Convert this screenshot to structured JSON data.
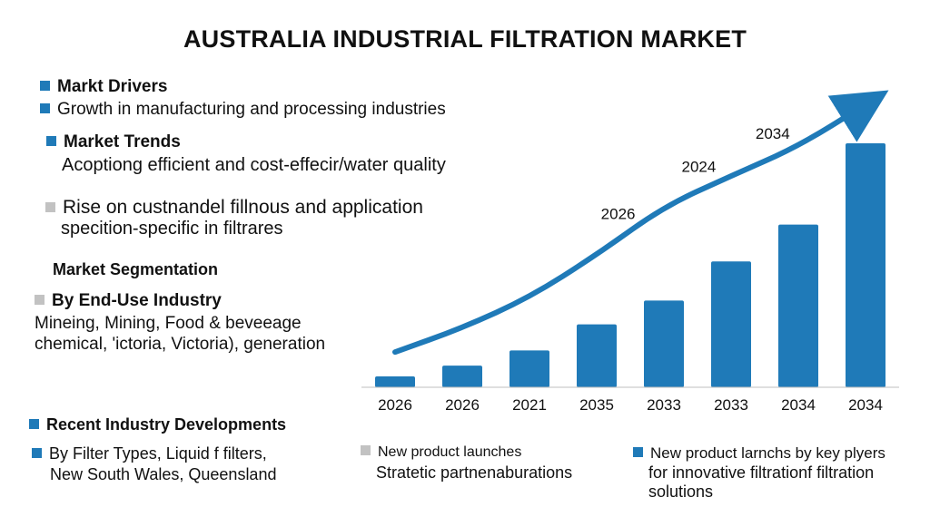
{
  "title": "AUSTRALIA INDUSTRIAL FILTRATION MARKET",
  "colors": {
    "accent": "#1f7ab8",
    "bullet_grey": "#c2c2c2"
  },
  "left": {
    "drivers": {
      "heading": "Markt Drivers",
      "item": "Growth in manufacturing and processing industries"
    },
    "trends": {
      "heading": "Market Trends",
      "item": "Acoptiong efficient and cost-effecir/water quality"
    },
    "rise": {
      "line1": "Rise on custnandel fillnous and application",
      "line2": "specition-specific in filtrares"
    },
    "segmentation": {
      "heading": "Market Segmentation"
    },
    "end_use": {
      "heading": "By End-Use Industry",
      "line1": "Mineing, Mining, Food & beveeage",
      "line2": "chemical, 'ictoria, Victoria),  generation"
    },
    "recent": {
      "heading": "Recent Industry Developments"
    },
    "filter_types": {
      "line1": "By Filter Types, Liquid f filters,",
      "line2": "New South Wales, Queensland"
    }
  },
  "bottom": {
    "col2": {
      "line1": "New product launches",
      "line2": "Stratetic partnenaburations"
    },
    "col3": {
      "line1": "New product larnchs by key plyers",
      "line2": "for innovative filtrationf filtration",
      "line3": "solutions"
    }
  },
  "chart_data": {
    "type": "bar",
    "categories": [
      "2026",
      "2026",
      "2021",
      "2035",
      "2033",
      "2033",
      "2034",
      "2034"
    ],
    "values": [
      1,
      2,
      3.4,
      5.8,
      8,
      11.6,
      15,
      22.5
    ],
    "ylim": [
      0,
      24
    ],
    "grid": false,
    "bar_color": "#1f7ab8",
    "trend_line": {
      "values": [
        3.8,
        6.4,
        9.7,
        14.3,
        19.5,
        22.8,
        26,
        30.5
      ],
      "labels": [
        {
          "text": "2026",
          "at_index": 3.4
        },
        {
          "text": "2024",
          "at_index": 4.6
        },
        {
          "text": "2034",
          "at_index": 5.7
        }
      ],
      "arrowhead": true
    }
  }
}
